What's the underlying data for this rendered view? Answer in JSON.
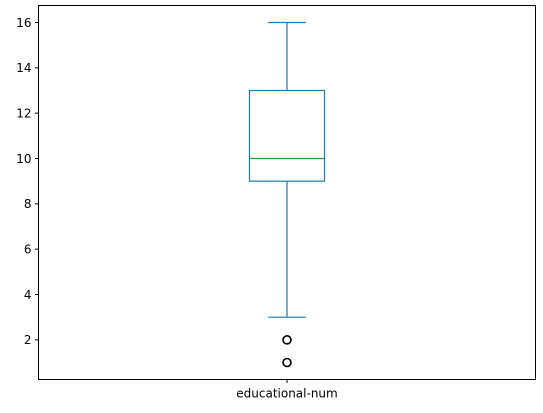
{
  "chart_data": {
    "type": "box",
    "categories": [
      "educational-num"
    ],
    "boxes": [
      {
        "category": "educational-num",
        "whisker_low": 3,
        "q1": 9,
        "median": 10,
        "q3": 13,
        "whisker_high": 16,
        "outliers": [
          1,
          2
        ]
      }
    ],
    "y_ticks": [
      2,
      4,
      6,
      8,
      10,
      12,
      14,
      16
    ],
    "ylim": [
      0.25,
      16.75
    ],
    "grid": false,
    "colors": {
      "box": "#1f77b4",
      "median": "#2ca02c",
      "outlier": "#000000"
    }
  }
}
